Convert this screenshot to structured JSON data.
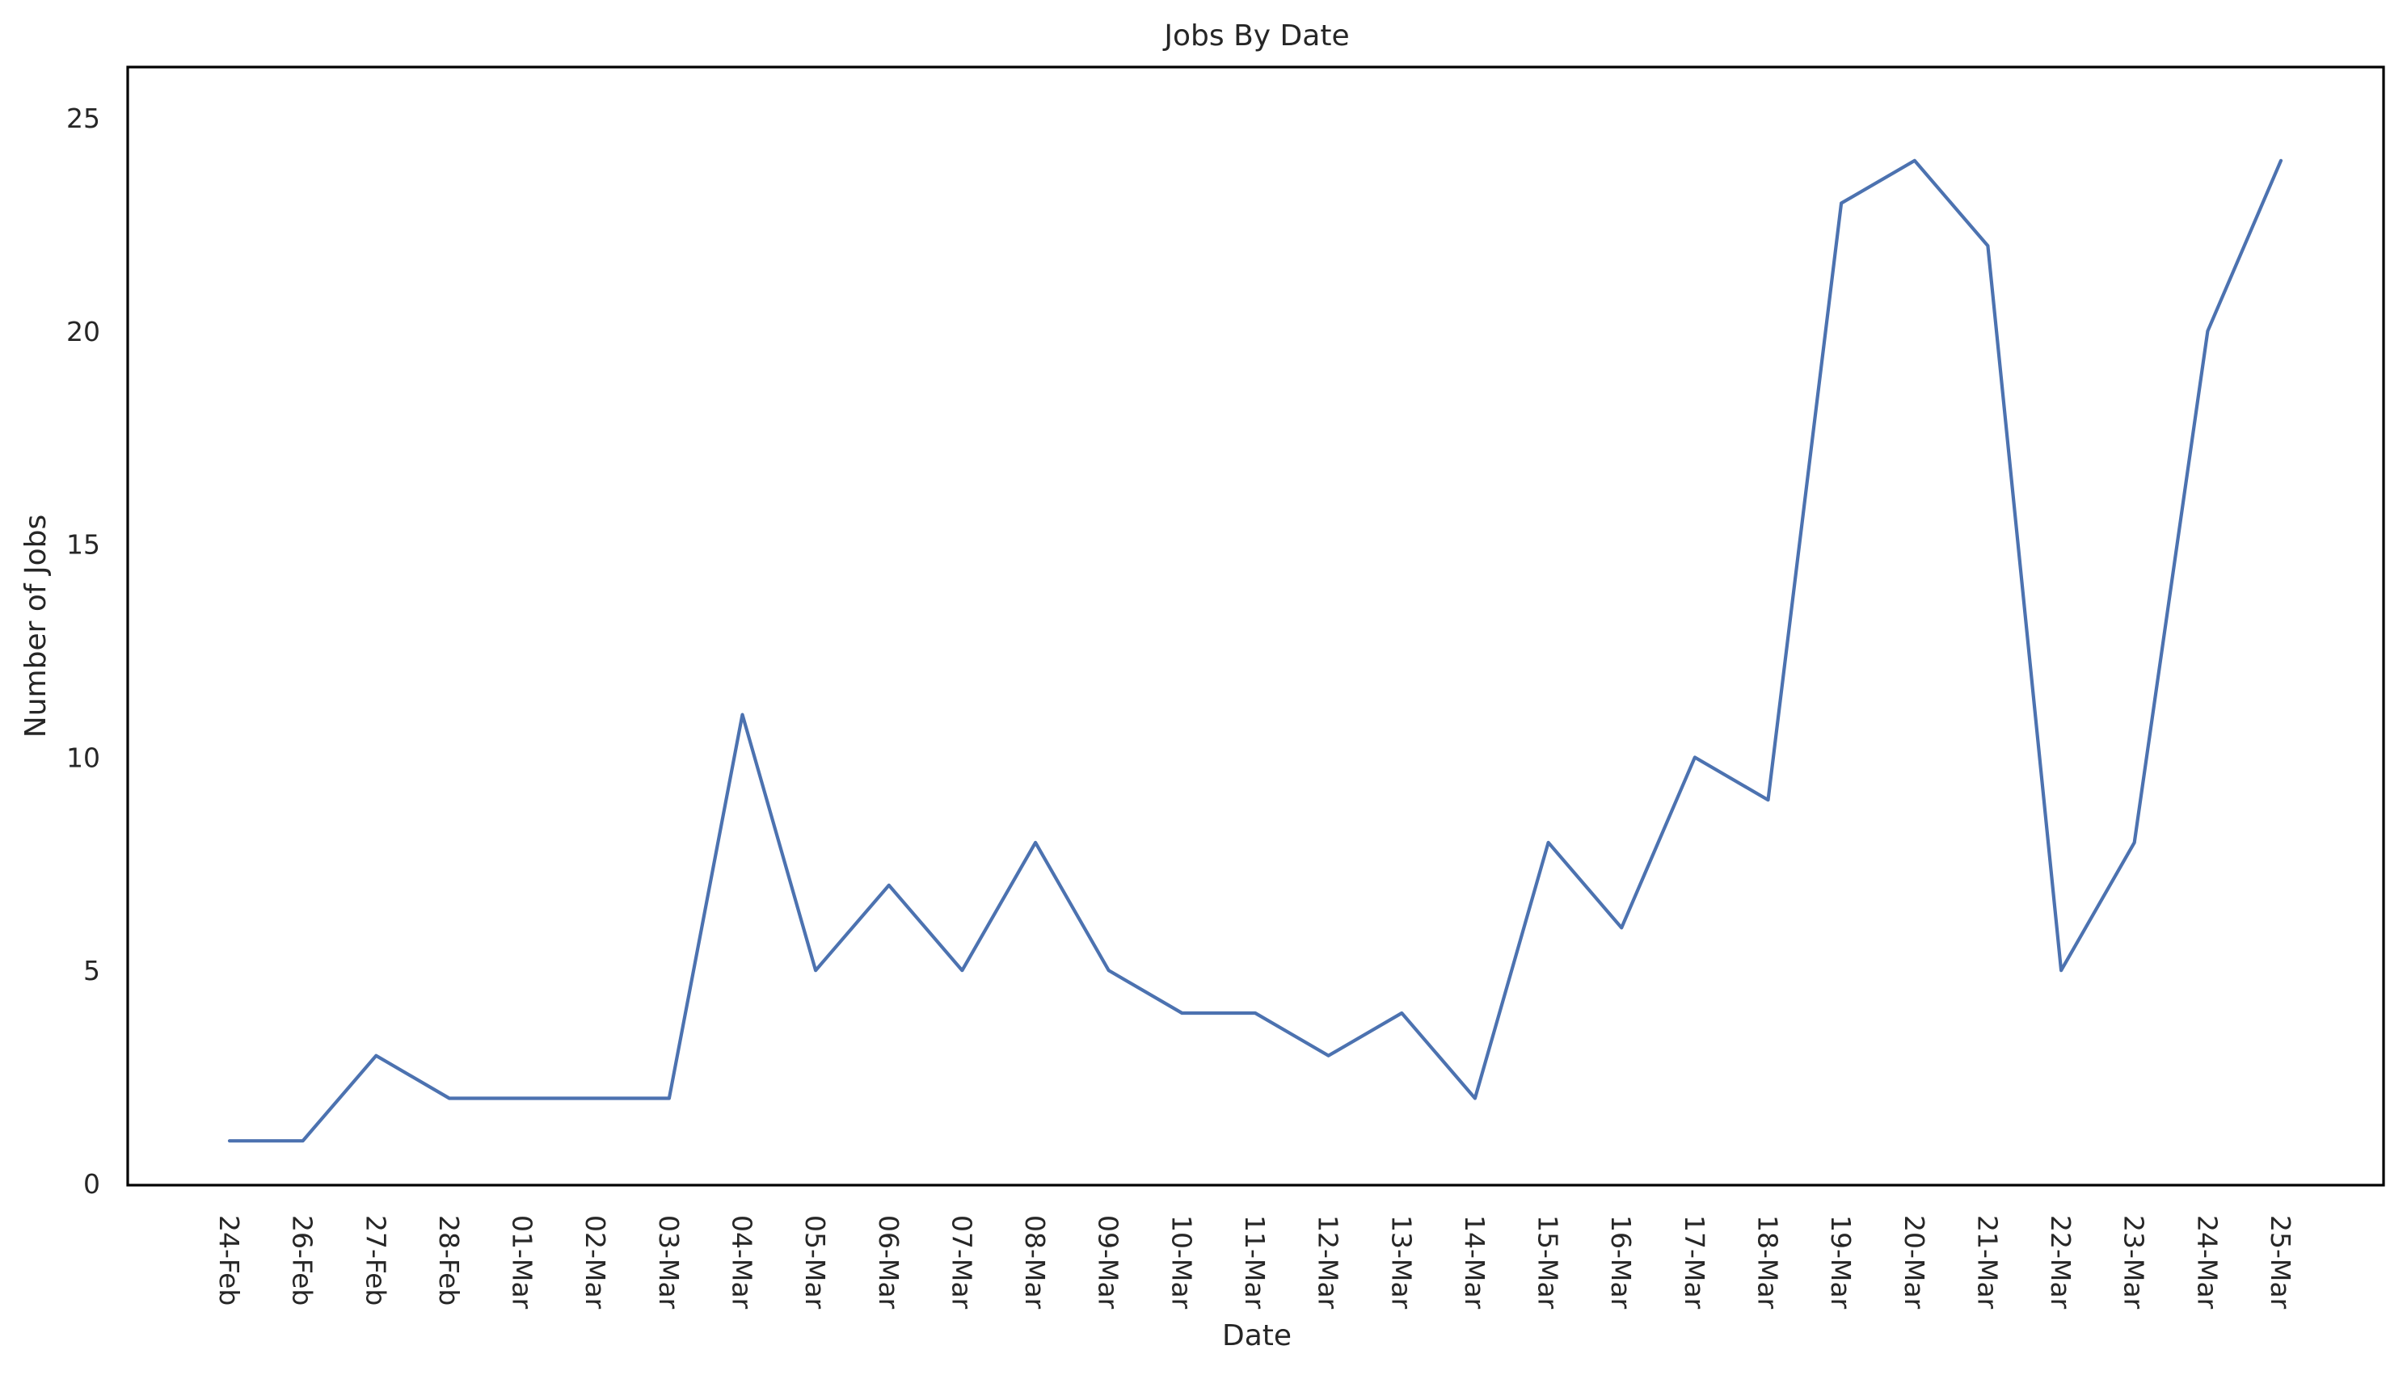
{
  "chart_data": {
    "type": "line",
    "title": "Jobs By Date",
    "xlabel": "Date",
    "ylabel": "Number of Jobs",
    "categories": [
      "24-Feb",
      "26-Feb",
      "27-Feb",
      "28-Feb",
      "01-Mar",
      "02-Mar",
      "03-Mar",
      "04-Mar",
      "05-Mar",
      "06-Mar",
      "07-Mar",
      "08-Mar",
      "09-Mar",
      "10-Mar",
      "11-Mar",
      "12-Mar",
      "13-Mar",
      "14-Mar",
      "15-Mar",
      "16-Mar",
      "17-Mar",
      "18-Mar",
      "19-Mar",
      "20-Mar",
      "21-Mar",
      "22-Mar",
      "23-Mar",
      "24-Mar",
      "25-Mar"
    ],
    "series": [
      {
        "values": [
          1,
          1,
          3,
          2,
          2,
          2,
          2,
          11,
          5,
          7,
          5,
          8,
          5,
          4,
          4,
          3,
          4,
          2,
          8,
          6,
          10,
          9,
          23,
          24,
          22,
          5,
          8,
          20,
          24
        ],
        "color": "#4c72b0"
      }
    ],
    "ylim": [
      0,
      25
    ],
    "yticks": [
      0,
      5,
      10,
      15,
      20,
      25
    ],
    "grid": false,
    "x_tick_rotation": "vertical"
  }
}
